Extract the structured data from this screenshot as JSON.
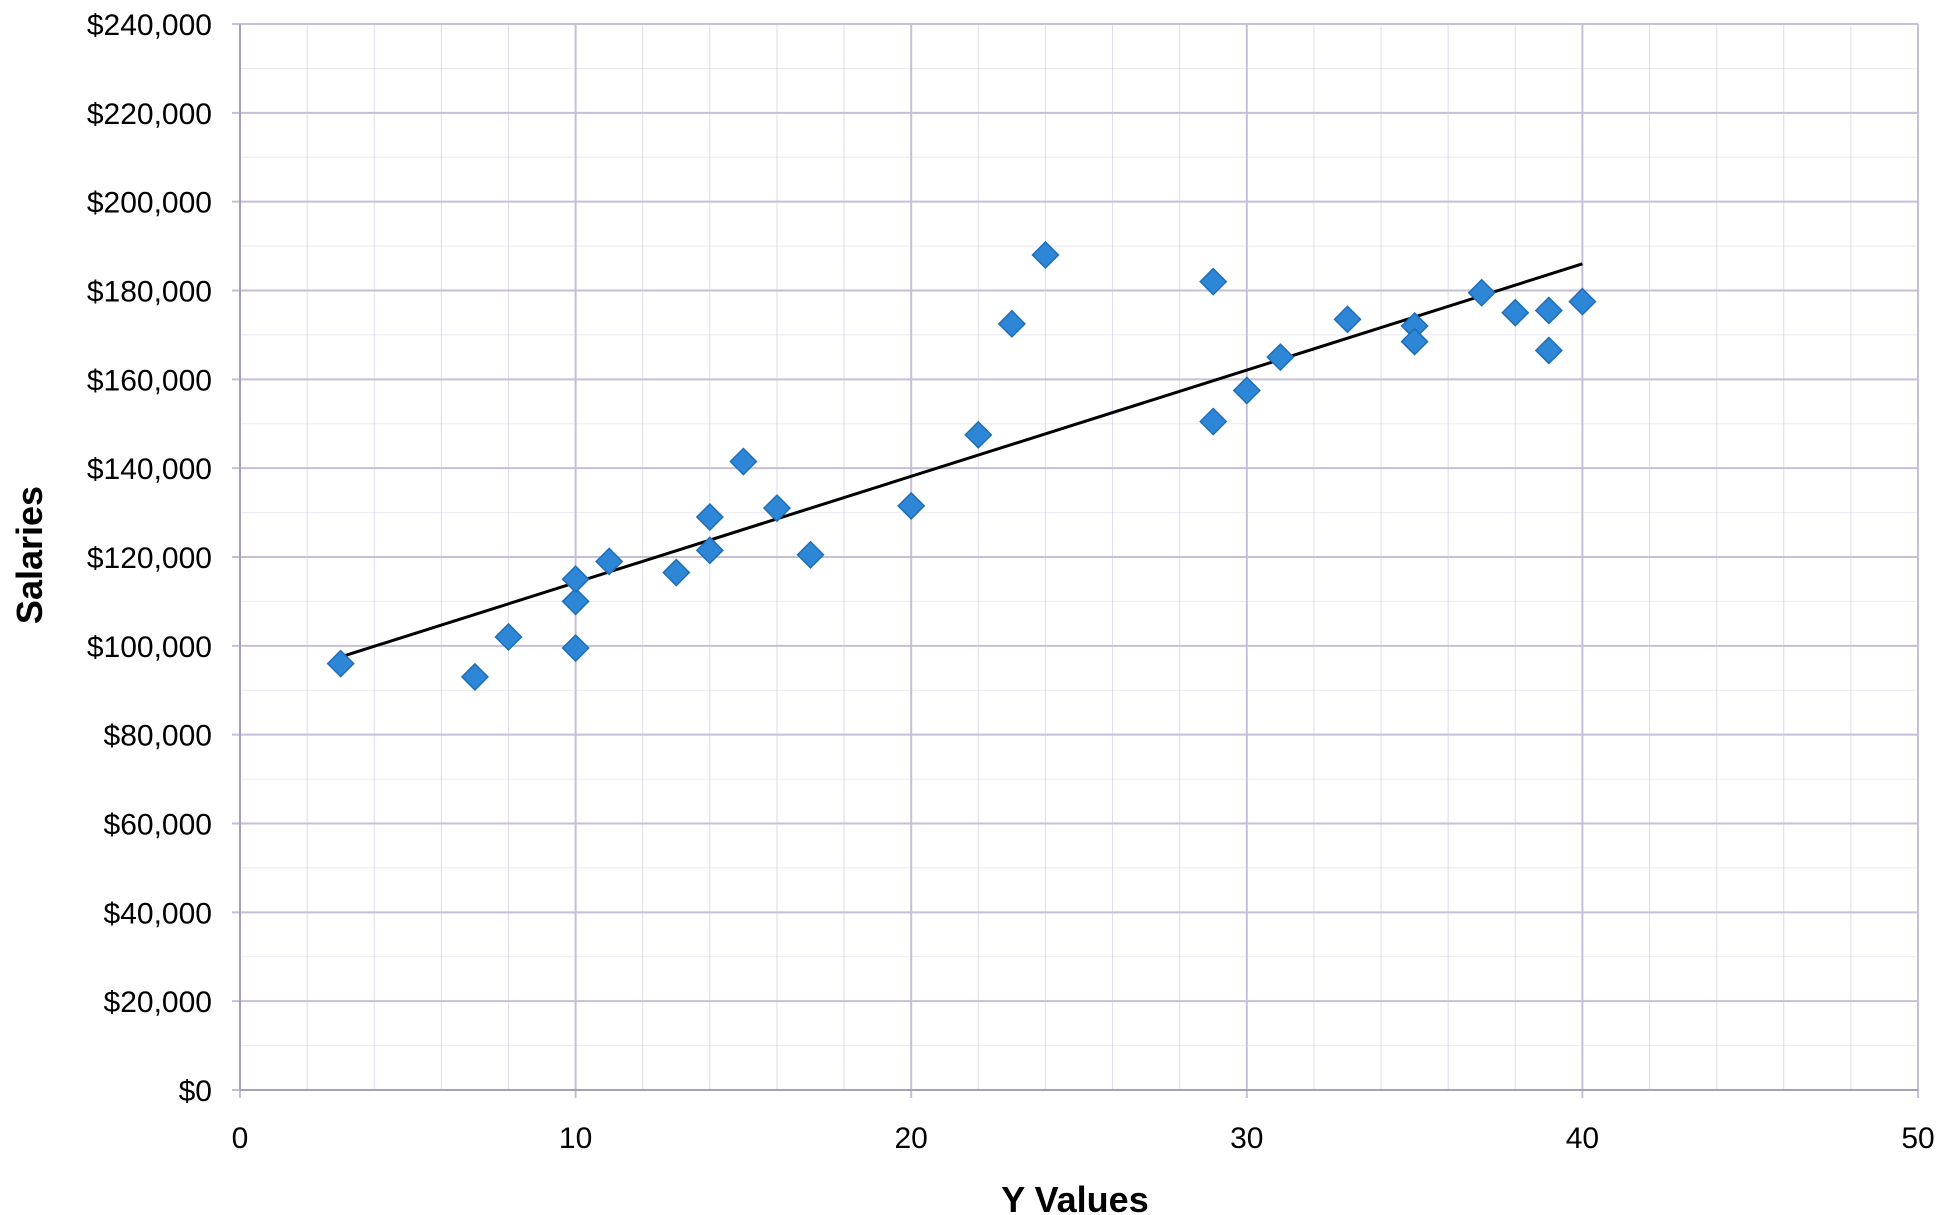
{
  "chart_data": {
    "type": "scatter",
    "title": "",
    "xlabel": "Y Values",
    "ylabel": "Salaries",
    "xlim": [
      0,
      50
    ],
    "ylim": [
      0,
      240000
    ],
    "x_ticks": [
      0,
      10,
      20,
      30,
      40,
      50
    ],
    "x_tick_labels": [
      "0",
      "10",
      "20",
      "30",
      "40",
      "50"
    ],
    "y_ticks": [
      0,
      20000,
      40000,
      60000,
      80000,
      100000,
      120000,
      140000,
      160000,
      180000,
      200000,
      220000,
      240000
    ],
    "y_tick_labels": [
      "$0",
      "$20,000",
      "$40,000",
      "$60,000",
      "$80,000",
      "$100,000",
      "$120,000",
      "$140,000",
      "$160,000",
      "$180,000",
      "$200,000",
      "$220,000",
      "$240,000"
    ],
    "grid": true,
    "legend": "none",
    "marker": "diamond",
    "marker_color": "#2e86d6",
    "gridline_color": "#c7bfd6",
    "trendline_color": "#000000",
    "series": [
      {
        "x": [
          3,
          7,
          8,
          10,
          10,
          10,
          11,
          13,
          14,
          14,
          15,
          16,
          17,
          20,
          22,
          23,
          24,
          29,
          29,
          30,
          31,
          33,
          35,
          35,
          37,
          38,
          39,
          39,
          40
        ],
        "y": [
          96000,
          93000,
          102000,
          99500,
          110000,
          115000,
          119000,
          116500,
          121500,
          129000,
          141500,
          131000,
          120500,
          131500,
          147500,
          172500,
          188000,
          182000,
          150500,
          157500,
          165000,
          173500,
          172000,
          168500,
          179500,
          175000,
          175500,
          166500,
          177500
        ]
      }
    ],
    "trendline": {
      "type": "linear",
      "x": [
        3,
        40
      ],
      "y": [
        97500,
        186000
      ]
    }
  }
}
